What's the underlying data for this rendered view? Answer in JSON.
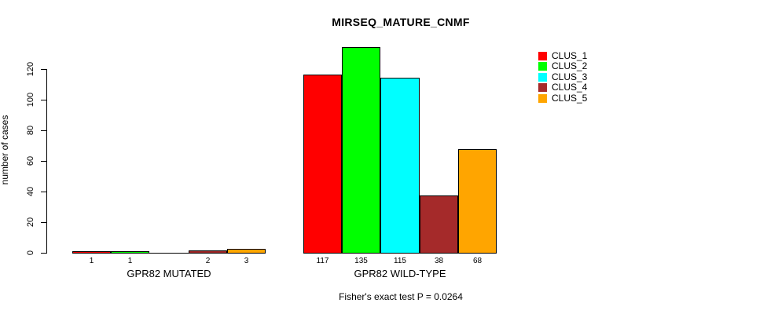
{
  "chart_data": {
    "type": "bar",
    "title": "MIRSEQ_MATURE_CNMF",
    "ylabel": "number of cases",
    "annotation": "Fisher's exact test P = 0.0264",
    "ylim": [
      0,
      135
    ],
    "yticks": [
      0,
      20,
      40,
      60,
      80,
      100,
      120
    ],
    "grid": false,
    "legend_position": "top-right",
    "categories": [
      "GPR82 MUTATED",
      "GPR82 WILD-TYPE"
    ],
    "series": [
      {
        "name": "CLUS_1",
        "color": "#FF0000",
        "values": [
          1,
          117
        ]
      },
      {
        "name": "CLUS_2",
        "color": "#00FF00",
        "values": [
          1,
          135
        ]
      },
      {
        "name": "CLUS_3",
        "color": "#00FFFF",
        "values": [
          0,
          115
        ]
      },
      {
        "name": "CLUS_4",
        "color": "#A52A2A",
        "values": [
          2,
          38
        ]
      },
      {
        "name": "CLUS_5",
        "color": "#FFA500",
        "values": [
          3,
          68
        ]
      }
    ],
    "bar_value_labels": [
      [
        "1",
        "1",
        "",
        "2",
        "3"
      ],
      [
        "117",
        "135",
        "115",
        "38",
        "68"
      ]
    ]
  }
}
